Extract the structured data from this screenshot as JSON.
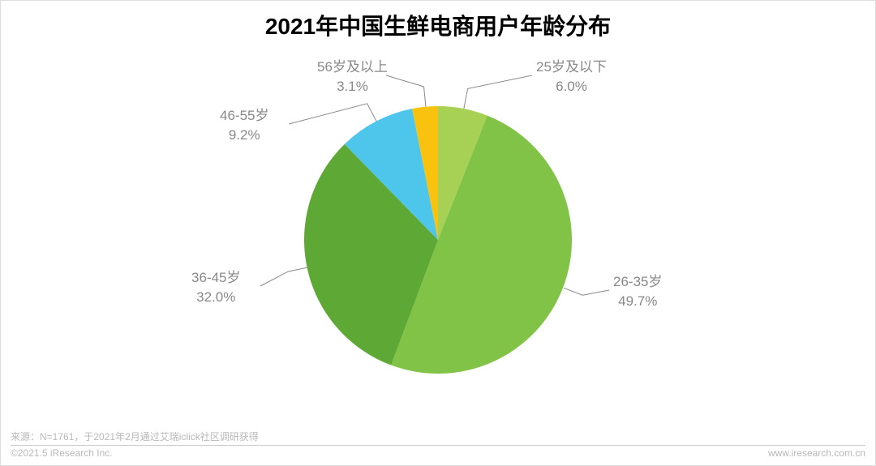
{
  "chart": {
    "type": "pie",
    "title": "2021年中国生鲜电商用户年龄分布",
    "title_fontsize": 28,
    "title_color": "#000000",
    "background_color": "#ffffff",
    "radius": 165,
    "slices": [
      {
        "label": "25岁及以下",
        "value": 6.0,
        "display": "6.0%",
        "color": "#a7d154"
      },
      {
        "label": "26-35岁",
        "value": 49.7,
        "display": "49.7%",
        "color": "#81c346"
      },
      {
        "label": "36-45岁",
        "value": 32.0,
        "display": "32.0%",
        "color": "#5ea935"
      },
      {
        "label": "46-55岁",
        "value": 9.2,
        "display": "9.2%",
        "color": "#4ec5ea"
      },
      {
        "label": "56岁及以上",
        "value": 3.1,
        "display": "3.1%",
        "color": "#f9c20e"
      }
    ],
    "label_color": "#888888",
    "label_fontsize": 17,
    "leader_color": "#888888"
  },
  "footer": {
    "source": "来源：N=1761，于2021年2月通过艾瑞iclick社区调研获得",
    "copyright": "©2021.5 iResearch Inc.",
    "url": "www.iresearch.com.cn",
    "text_color": "#b8b8b8",
    "fontsize": 12
  }
}
